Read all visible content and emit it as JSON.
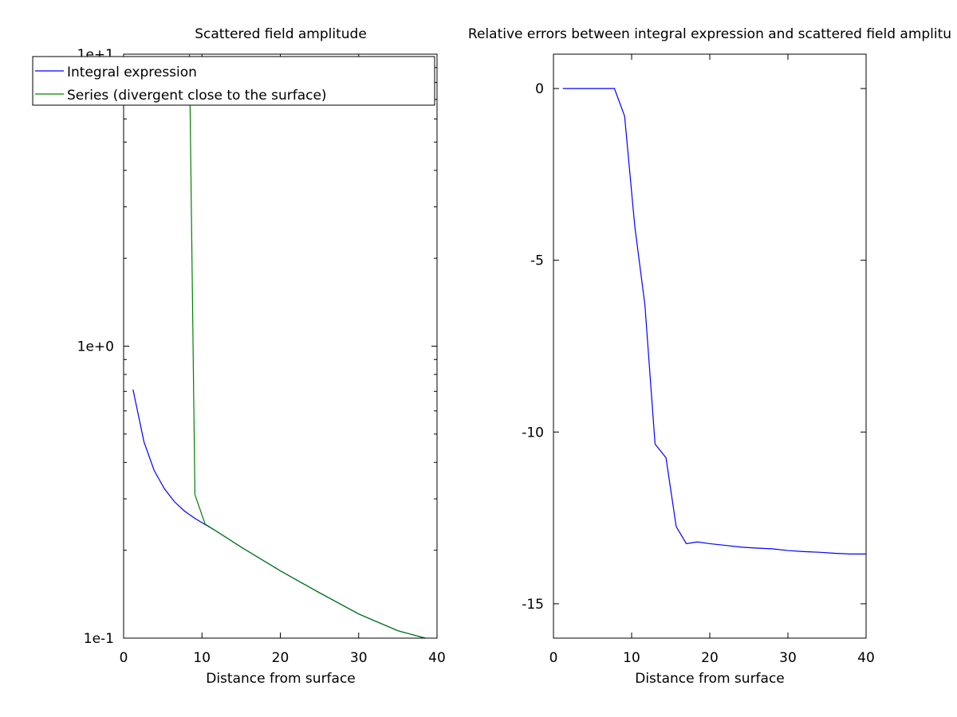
{
  "chart_data": [
    {
      "type": "line",
      "title": "Scattered field amplitude",
      "xlabel": "Distance from surface",
      "ylabel": "",
      "xlim": [
        0,
        40
      ],
      "ylim": [
        0.1,
        10
      ],
      "yscale": "log",
      "grid": false,
      "legend_position": "top-left",
      "x_ticks": [
        0,
        10,
        20,
        30,
        40
      ],
      "x_tick_labels": [
        "0",
        "10",
        "20",
        "30",
        "40"
      ],
      "y_ticks": [
        0.1,
        1,
        10
      ],
      "y_tick_labels": [
        "1e-1",
        "1e+0",
        "1e+1"
      ],
      "series": [
        {
          "name": "Integral expression",
          "color": "#0000ff",
          "x": [
            1.2,
            2.6,
            3.9,
            5.2,
            6.5,
            7.8,
            9.1,
            10.4,
            12,
            15,
            20,
            25,
            30,
            35,
            38.5
          ],
          "y": [
            0.71,
            0.47,
            0.375,
            0.325,
            0.293,
            0.272,
            0.257,
            0.245,
            0.231,
            0.205,
            0.17,
            0.143,
            0.121,
            0.106,
            0.1
          ]
        },
        {
          "name": "Series (divergent close to the surface)",
          "color": "#008000",
          "x": [
            8.4,
            9.1,
            10.4,
            12,
            15,
            20,
            25,
            30,
            35,
            38.5
          ],
          "y": [
            10,
            0.31,
            0.246,
            0.231,
            0.205,
            0.17,
            0.143,
            0.121,
            0.106,
            0.1
          ]
        }
      ]
    },
    {
      "type": "line",
      "title": "Relative errors between integral expression and scattered field amplitu",
      "xlabel": "Distance from surface",
      "ylabel": "",
      "xlim": [
        0,
        40
      ],
      "ylim": [
        -16,
        1
      ],
      "grid": false,
      "x_ticks": [
        0,
        10,
        20,
        30,
        40
      ],
      "x_tick_labels": [
        "0",
        "10",
        "20",
        "30",
        "40"
      ],
      "y_ticks": [
        0,
        -5,
        -10,
        -15
      ],
      "y_tick_labels": [
        "0",
        "-5",
        "-10",
        "-15"
      ],
      "series": [
        {
          "color": "#0000ff",
          "x": [
            1.2,
            2.6,
            3.9,
            5.2,
            6.5,
            7.8,
            9.1,
            10.4,
            11.7,
            13.0,
            14.4,
            15.7,
            17.0,
            18.4,
            20,
            22,
            24,
            26,
            28,
            30,
            32,
            34,
            36,
            38,
            40
          ],
          "y": [
            0,
            0,
            0,
            0,
            0,
            0,
            -0.8,
            -4.0,
            -6.3,
            -10.35,
            -10.75,
            -12.75,
            -13.25,
            -13.2,
            -13.25,
            -13.3,
            -13.35,
            -13.38,
            -13.4,
            -13.45,
            -13.48,
            -13.5,
            -13.53,
            -13.55,
            -13.55
          ]
        }
      ]
    }
  ]
}
